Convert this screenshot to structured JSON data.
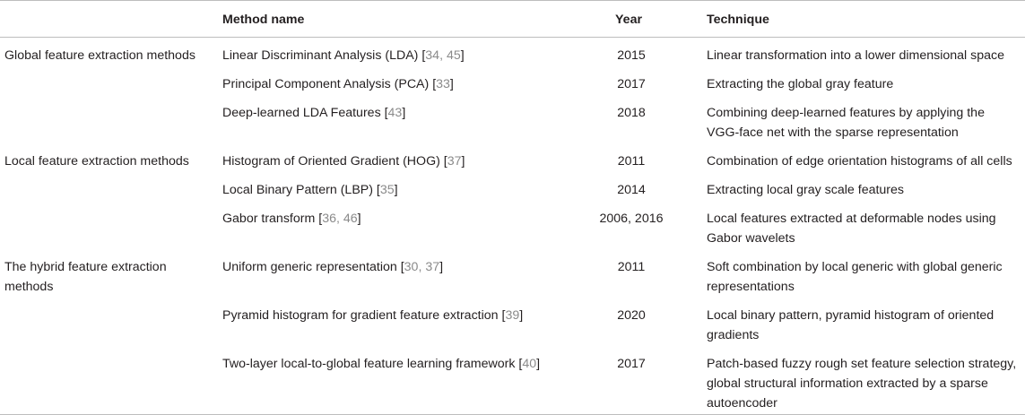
{
  "table": {
    "headers": {
      "group": "",
      "method": "Method name",
      "year": "Year",
      "technique": "Technique"
    },
    "groups": [
      {
        "label": "Global feature extraction methods",
        "rows": [
          {
            "method": "Linear Discriminant Analysis (LDA) [",
            "refs": "34, 45",
            "close": "]",
            "year": "2015",
            "technique": "Linear transformation into a lower dimensional space"
          },
          {
            "method": "Principal Component Analysis (PCA) [",
            "refs": "33",
            "close": "]",
            "year": "2017",
            "technique": "Extracting the global gray feature"
          },
          {
            "method": "Deep-learned LDA Features [",
            "refs": "43",
            "close": "]",
            "year": "2018",
            "technique": "Combining deep-learned features by applying the VGG-face net with the sparse representation"
          }
        ]
      },
      {
        "label": "Local feature extraction methods",
        "rows": [
          {
            "method": "Histogram of Oriented Gradient (HOG) [",
            "refs": "37",
            "close": "]",
            "year": "2011",
            "technique": "Combination of edge orientation histograms of all cells"
          },
          {
            "method": "Local Binary Pattern (LBP) [",
            "refs": "35",
            "close": "]",
            "year": "2014",
            "technique": "Extracting local gray scale features"
          },
          {
            "method": "Gabor transform [",
            "refs": "36, 46",
            "close": "]",
            "year": "2006, 2016",
            "technique": "Local features extracted at deformable nodes using Gabor wavelets"
          }
        ]
      },
      {
        "label": "The hybrid feature extraction methods",
        "rows": [
          {
            "method": "Uniform generic representation [",
            "refs": "30, 37",
            "close": "]",
            "year": "2011",
            "technique": "Soft combination by local generic with global generic representations"
          },
          {
            "method": "Pyramid histogram for gradient feature extraction [",
            "refs": "39",
            "close": "]",
            "year": "2020",
            "technique": "Local binary pattern, pyramid histogram of oriented gradients"
          },
          {
            "method": "Two-layer local-to-global feature learning framework [",
            "refs": "40",
            "close": "]",
            "year": "2017",
            "technique": "Patch-based fuzzy rough set feature selection strategy, global structural information extracted by a sparse autoencoder"
          }
        ]
      }
    ]
  }
}
